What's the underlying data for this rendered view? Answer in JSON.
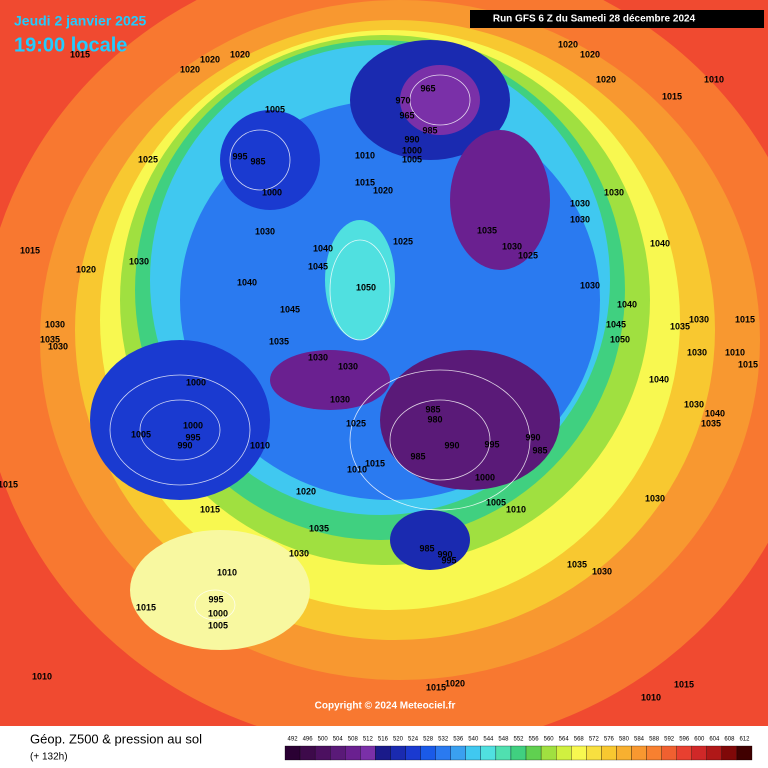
{
  "header": {
    "date": "Jeudi 2 janvier 2025",
    "time": "19:00 locale",
    "run": "Run GFS 6 Z du Samedi 28 décembre 2024"
  },
  "copyright": "Copyright © 2024 Meteociel.fr",
  "footer": {
    "title": "Géop. Z500 & pression au sol",
    "lead": "(+ 132h)"
  },
  "colorbar": {
    "values": [
      492,
      496,
      500,
      504,
      508,
      512,
      516,
      520,
      524,
      528,
      532,
      536,
      540,
      544,
      548,
      552,
      556,
      560,
      564,
      568,
      572,
      576,
      580,
      584,
      588,
      592,
      596,
      600,
      604,
      608,
      612
    ],
    "colors": [
      "#2a0033",
      "#3d0a4a",
      "#4c1060",
      "#5a1a78",
      "#6a2090",
      "#7a30a8",
      "#1a1a8a",
      "#1a2ab0",
      "#1a3ad0",
      "#1a5ae8",
      "#2a7af0",
      "#3aa0f0",
      "#40c8f0",
      "#50e0e0",
      "#50e0b0",
      "#40d080",
      "#60d050",
      "#a0e040",
      "#d0f040",
      "#f8f850",
      "#f8e040",
      "#f8c830",
      "#f8b030",
      "#f89830",
      "#f88030",
      "#f06030",
      "#e84030",
      "#d02828",
      "#b01818",
      "#800808",
      "#400000"
    ]
  },
  "pressure_labels": [
    "1015",
    "1020",
    "1020",
    "1020",
    "1005",
    "995",
    "985",
    "1000",
    "1025",
    "1010",
    "1015",
    "1020",
    "1030",
    "1025",
    "1040",
    "1045",
    "1050",
    "965",
    "970",
    "965",
    "985",
    "990",
    "1000",
    "1005",
    "1020",
    "1020",
    "1020",
    "1015",
    "1010",
    "1030",
    "1030",
    "1030",
    "1035",
    "1030",
    "1025",
    "1040",
    "1030",
    "1040",
    "1045",
    "1050",
    "1035",
    "1030",
    "1015",
    "1030",
    "1010",
    "1015",
    "1040",
    "1030",
    "1040",
    "1035",
    "1015",
    "1030",
    "1020",
    "1040",
    "1045",
    "1030",
    "1035",
    "1030",
    "1035",
    "1030",
    "1030",
    "1000",
    "1000",
    "995",
    "990",
    "1005",
    "1010",
    "1030",
    "1025",
    "985",
    "980",
    "990",
    "995",
    "990",
    "985",
    "1015",
    "1010",
    "985",
    "1000",
    "1005",
    "1010",
    "1015",
    "1020",
    "1015",
    "1035",
    "1030",
    "985",
    "990",
    "995",
    "1035",
    "1030",
    "1030",
    "1010",
    "995",
    "1000",
    "1005",
    "1015",
    "1010",
    "1020",
    "1015",
    "1015",
    "1010"
  ]
}
